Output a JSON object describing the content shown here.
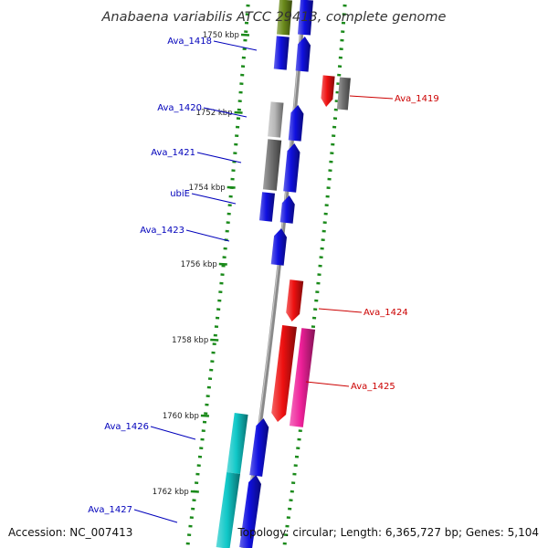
{
  "title": "Anabaena variabilis ATCC 29413, complete genome",
  "accession_text": "Accession: NC_007413",
  "topology_text": "Topology: circular; Length: 6,365,727 bp; Genes: 5,104",
  "scale_labels": [
    "1750 kbp",
    "1752 kbp",
    "1754 kbp",
    "1756 kbp",
    "1758 kbp",
    "1760 kbp",
    "1762 kbp"
  ],
  "genes_inner": [
    {
      "label": "Ava_1418"
    },
    {
      "label": "Ava_1420"
    },
    {
      "label": "Ava_1421"
    },
    {
      "label": "ubiE"
    },
    {
      "label": "Ava_1423"
    },
    {
      "label": "Ava_1426"
    },
    {
      "label": "Ava_1427"
    }
  ],
  "genes_outer": [
    {
      "label": "Ava_1419"
    },
    {
      "label": "Ava_1424"
    },
    {
      "label": "Ava_1425"
    }
  ],
  "colors": {
    "backbone": "#8a8a8a",
    "forward_gene": "#1010e0",
    "reverse_gene": "#ee1010",
    "tick": "#1a8a1a",
    "inner_label": "#0000bb",
    "outer_label": "#cc0000",
    "cyan_gene": "#10c8c8",
    "magenta_gene": "#ee2099",
    "gray_gene": "#707070",
    "light_gray_gene": "#b8b8b8",
    "olive_gene": "#6a8a1a"
  }
}
